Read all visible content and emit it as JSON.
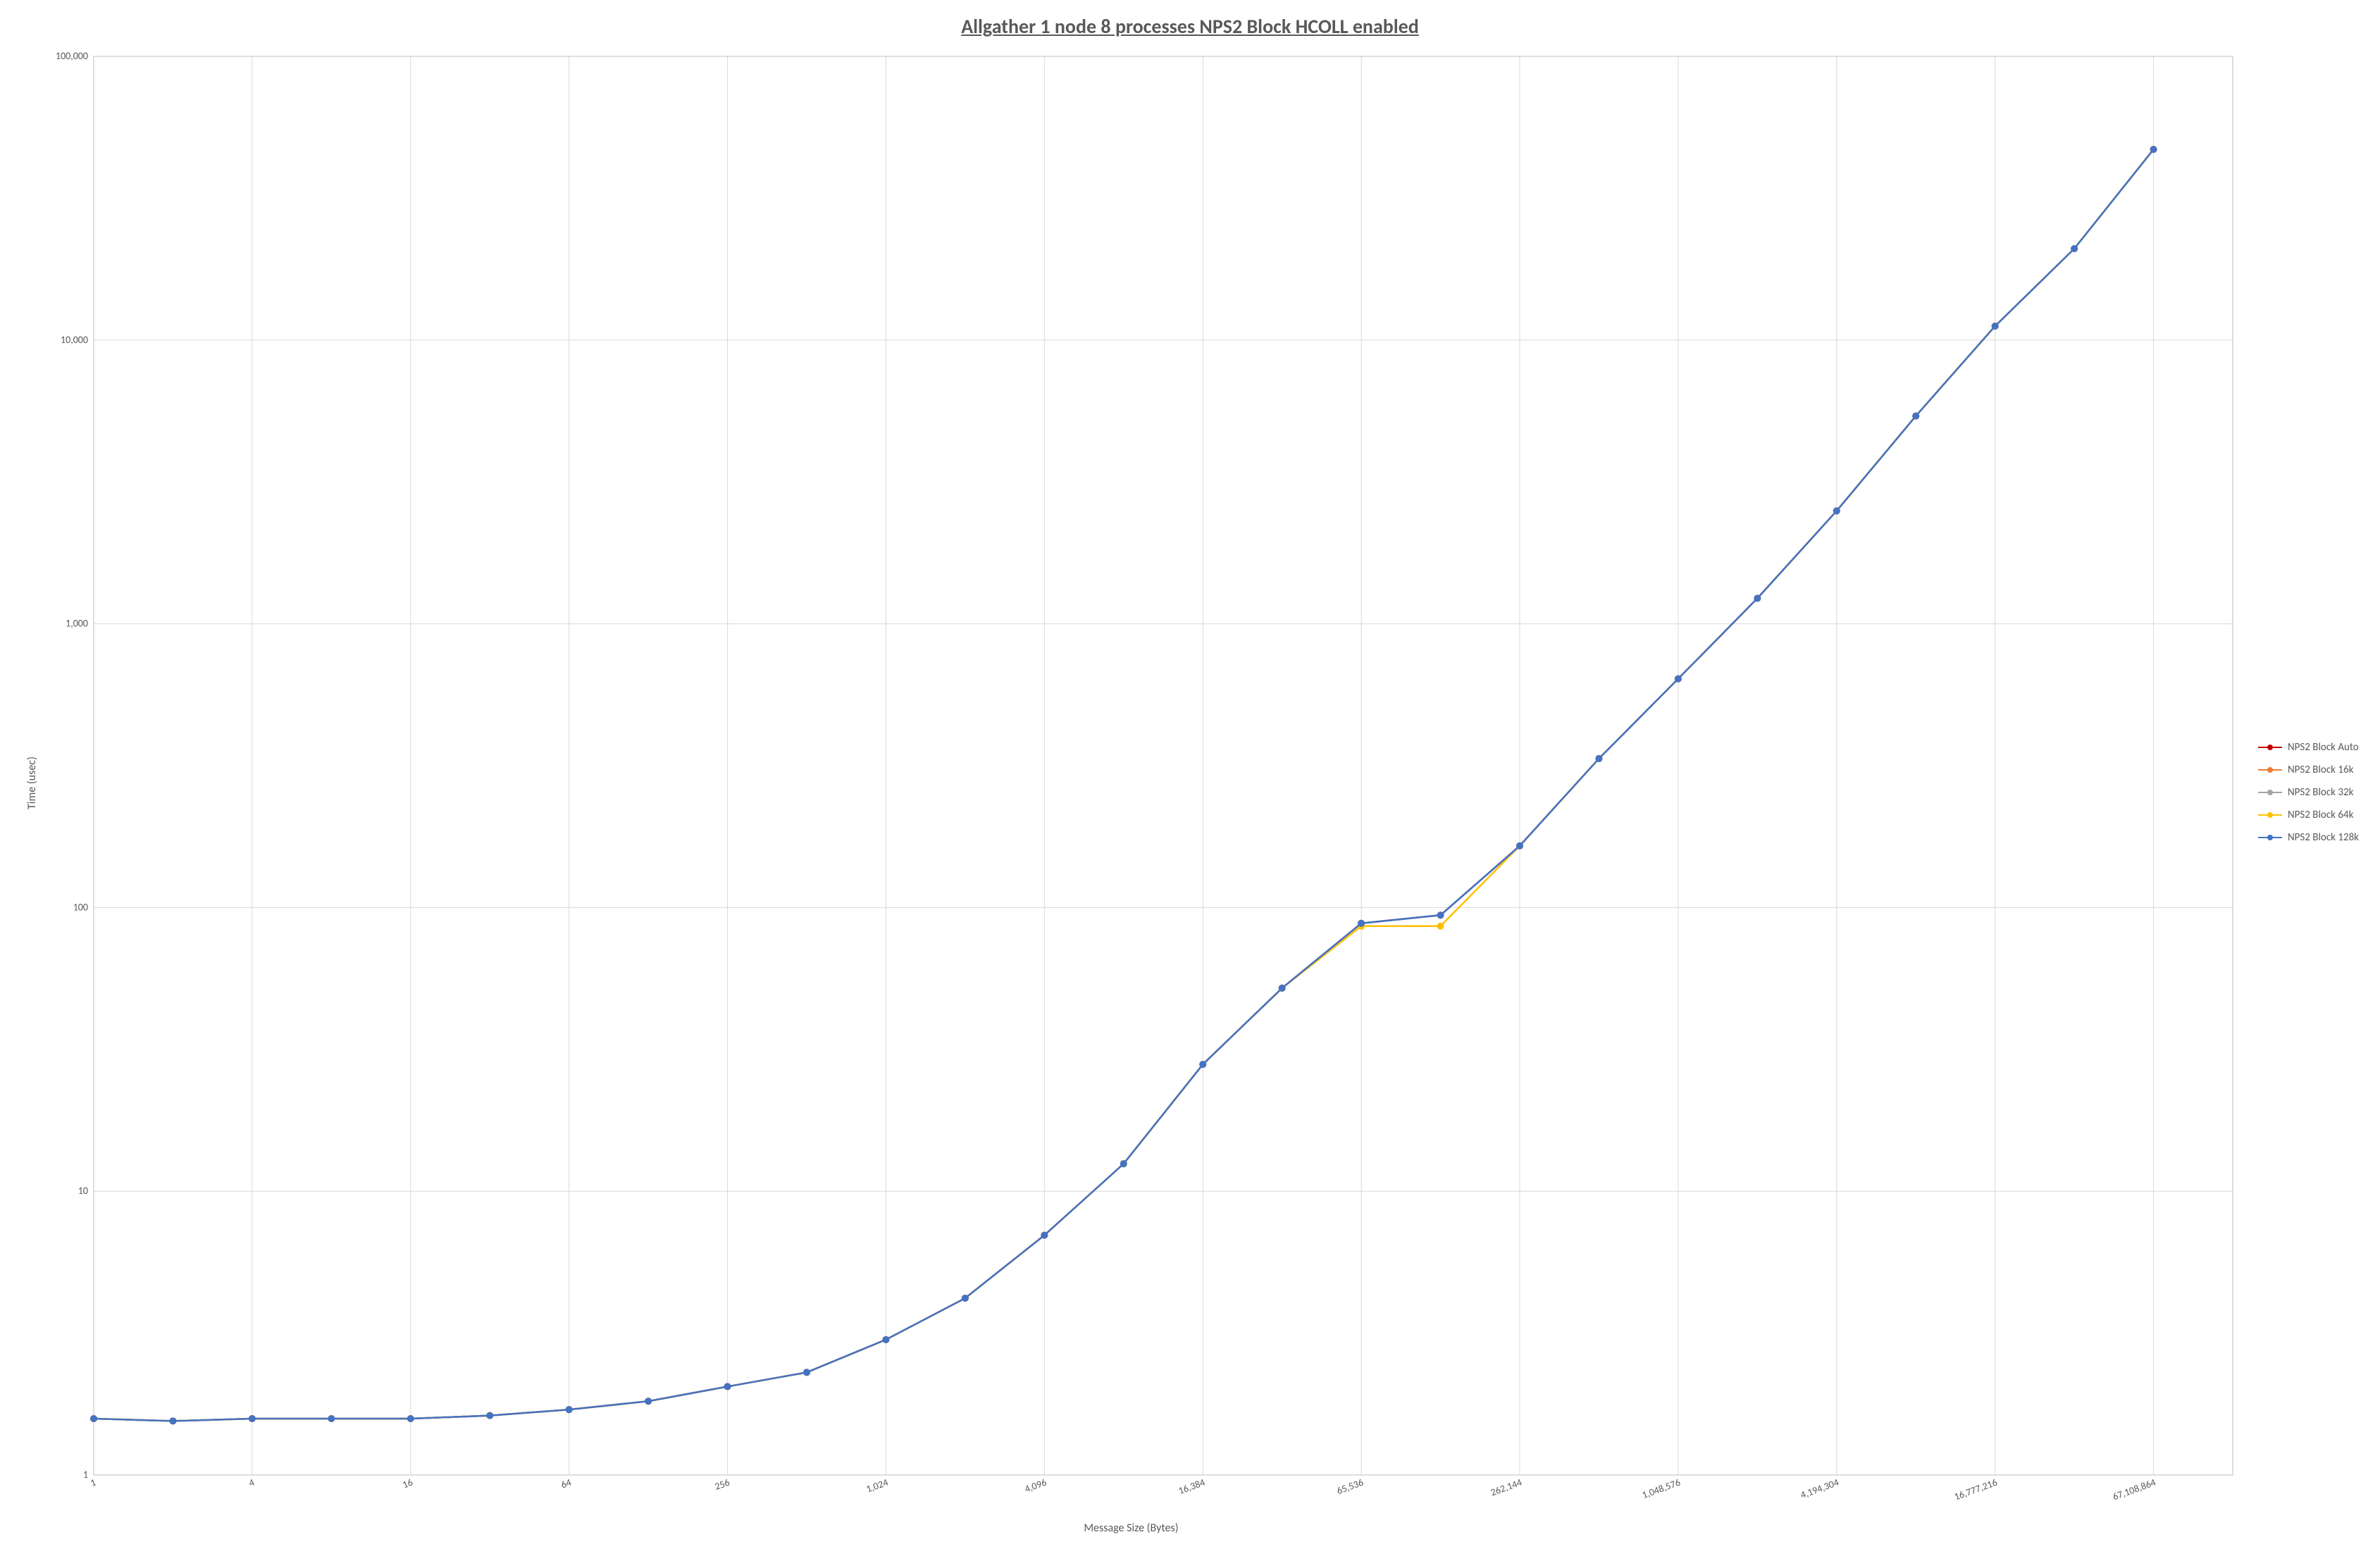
{
  "chart": {
    "type": "line-log-log",
    "title": "Allgather 1 node 8 processes NPS2 Block HCOLL enabled",
    "title_fontsize": 28,
    "title_color": "#595959",
    "xlabel": "Message Size (Bytes)",
    "ylabel": "Time (usec)",
    "axis_label_fontsize": 16,
    "tick_fontsize": 14,
    "background_color": "#ffffff",
    "grid_color": "#d9d9d9",
    "axis_line_color": "#bfbfbf",
    "x_scale": "log2",
    "y_scale": "log10",
    "xlim": [
      1,
      134217728
    ],
    "ylim": [
      1,
      100000
    ],
    "x_ticks": [
      1,
      4,
      16,
      64,
      256,
      1024,
      4096,
      16384,
      65536,
      262144,
      1048576,
      4194304,
      16777216,
      67108864
    ],
    "x_tick_labels": [
      "1",
      "4",
      "16",
      "64",
      "256",
      "1,024",
      "4,096",
      "16,384",
      "65,536",
      "262,144",
      "1,048,576",
      "4,194,304",
      "16,777,216",
      "67,108,864"
    ],
    "y_ticks": [
      1,
      10,
      100,
      1000,
      10000,
      100000
    ],
    "y_tick_labels": [
      "1",
      "10",
      "100",
      "1,000",
      "10,000",
      "100,000"
    ],
    "marker_radius": 5,
    "line_width": 2.5,
    "legend_fontsize": 15,
    "categories": [
      1,
      2,
      4,
      8,
      16,
      32,
      64,
      128,
      256,
      512,
      1024,
      2048,
      4096,
      8192,
      16384,
      32768,
      65536,
      131072,
      262144,
      524288,
      1048576,
      2097152,
      4194304,
      8388608,
      16777216,
      33554432,
      67108864
    ],
    "series": [
      {
        "name": "NPS2 Block Auto",
        "color": "#c00000",
        "values": [
          1.58,
          1.55,
          1.58,
          1.58,
          1.58,
          1.62,
          1.7,
          1.82,
          2.05,
          2.3,
          3.0,
          4.2,
          7.0,
          12.5,
          28.0,
          52.0,
          88.0,
          94.0,
          165.0,
          335.0,
          640.0,
          1230.0,
          2500.0,
          5400.0,
          11200.0,
          21000.0,
          47000.0
        ]
      },
      {
        "name": "NPS2 Block 16k",
        "color": "#ed7d31",
        "values": [
          1.58,
          1.55,
          1.58,
          1.58,
          1.58,
          1.62,
          1.7,
          1.82,
          2.05,
          2.3,
          3.0,
          4.2,
          7.0,
          12.5,
          28.0,
          52.0,
          88.0,
          94.0,
          165.0,
          335.0,
          640.0,
          1230.0,
          2500.0,
          5400.0,
          11200.0,
          21000.0,
          47000.0
        ]
      },
      {
        "name": "NPS2 Block 32k",
        "color": "#a5a5a5",
        "values": [
          1.58,
          1.55,
          1.58,
          1.58,
          1.58,
          1.62,
          1.7,
          1.82,
          2.05,
          2.3,
          3.0,
          4.2,
          7.0,
          12.5,
          28.0,
          52.0,
          88.0,
          94.0,
          165.0,
          335.0,
          640.0,
          1230.0,
          2500.0,
          5400.0,
          11200.0,
          21000.0,
          47000.0
        ]
      },
      {
        "name": "NPS2 Block 64k",
        "color": "#ffc000",
        "values": [
          1.58,
          1.55,
          1.58,
          1.58,
          1.58,
          1.62,
          1.7,
          1.82,
          2.05,
          2.3,
          3.0,
          4.2,
          7.0,
          12.5,
          28.0,
          52.0,
          86.0,
          86.0,
          165.0,
          335.0,
          640.0,
          1230.0,
          2500.0,
          5400.0,
          11200.0,
          21000.0,
          47000.0
        ]
      },
      {
        "name": "NPS2 Block 128k",
        "color": "#4472c4",
        "values": [
          1.58,
          1.55,
          1.58,
          1.58,
          1.58,
          1.62,
          1.7,
          1.82,
          2.05,
          2.3,
          3.0,
          4.2,
          7.0,
          12.5,
          28.0,
          52.0,
          88.0,
          94.0,
          165.0,
          335.0,
          640.0,
          1230.0,
          2500.0,
          5400.0,
          11200.0,
          21000.0,
          47000.0
        ]
      }
    ]
  }
}
